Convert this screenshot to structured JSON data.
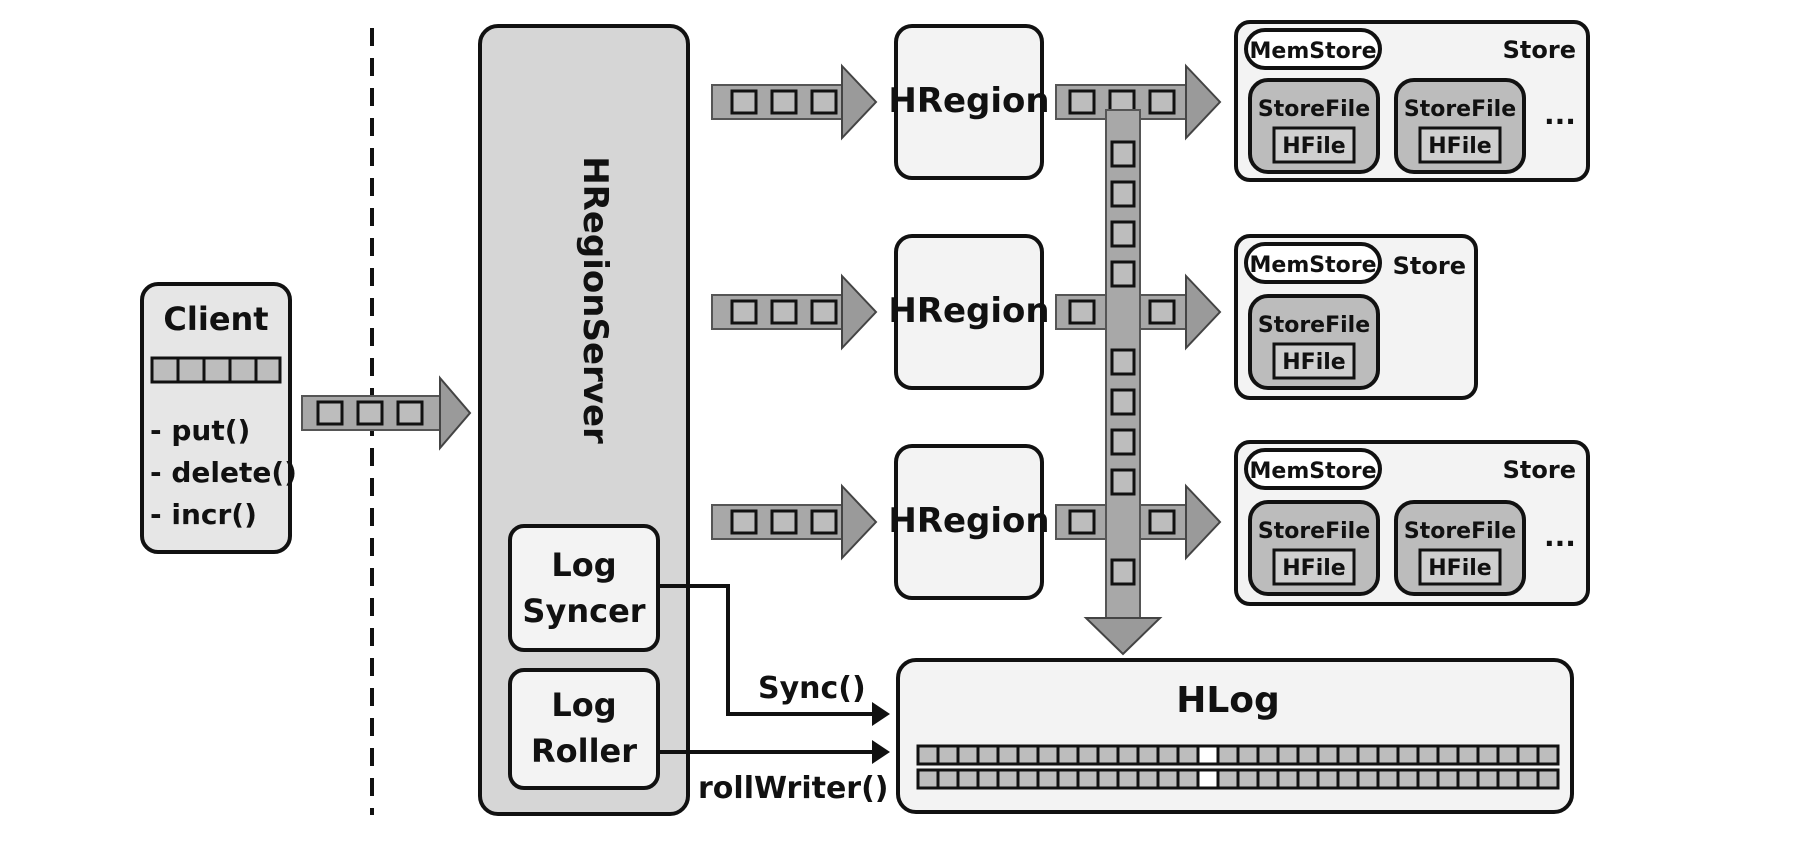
{
  "client": {
    "title": "Client",
    "methods": [
      "- put()",
      "- delete()",
      "- incr()"
    ]
  },
  "server": {
    "title": "HRegionServer"
  },
  "log_syncer": {
    "line1": "Log",
    "line2": "Syncer"
  },
  "log_roller": {
    "line1": "Log",
    "line2": "Roller"
  },
  "regions": [
    {
      "label": "HRegion"
    },
    {
      "label": "HRegion"
    },
    {
      "label": "HRegion"
    }
  ],
  "stores": [
    {
      "memstore": "MemStore",
      "store_label": "Store",
      "storefiles": [
        {
          "label": "StoreFile",
          "hfile": "HFile"
        },
        {
          "label": "StoreFile",
          "hfile": "HFile"
        }
      ],
      "ellipsis": "..."
    },
    {
      "memstore": "MemStore",
      "store_label": "Store",
      "storefiles": [
        {
          "label": "StoreFile",
          "hfile": "HFile"
        }
      ],
      "ellipsis": ""
    },
    {
      "memstore": "MemStore",
      "store_label": "Store",
      "storefiles": [
        {
          "label": "StoreFile",
          "hfile": "HFile"
        },
        {
          "label": "StoreFile",
          "hfile": "HFile"
        }
      ],
      "ellipsis": "..."
    }
  ],
  "hlog": {
    "title": "HLog"
  },
  "calls": {
    "sync": "Sync()",
    "roll": "rollWriter()"
  },
  "colors": {
    "box_fill": "#e6e6e6",
    "server_fill": "#d6d6d6",
    "line": "#111111"
  }
}
